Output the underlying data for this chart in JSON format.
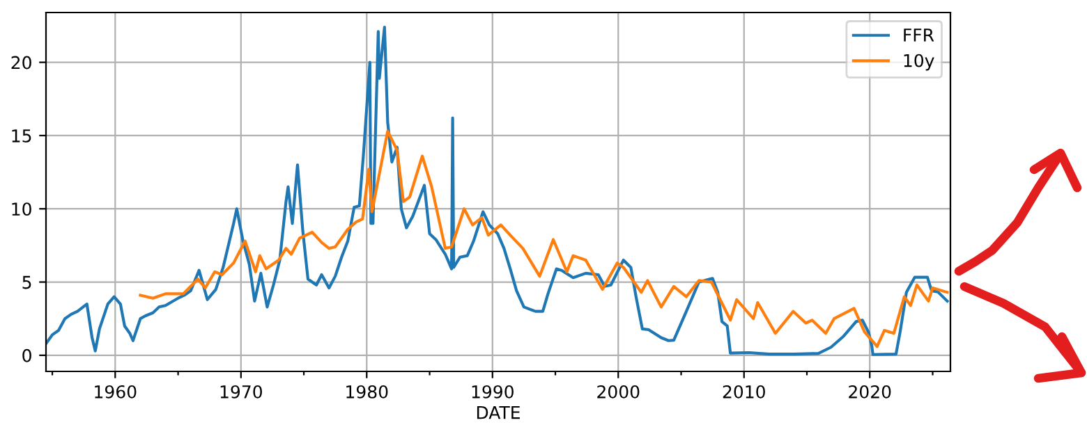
{
  "chart_data": {
    "type": "line",
    "xlabel": "DATE",
    "xlim": [
      "1954-07",
      "2026-06"
    ],
    "ylim": [
      -1.1,
      23.4
    ],
    "xticks": [
      {
        "value": "1955",
        "label": null
      },
      {
        "value": "1960",
        "label": "1960"
      },
      {
        "value": "1965",
        "label": null
      },
      {
        "value": "1970",
        "label": "1970"
      },
      {
        "value": "1975",
        "label": null
      },
      {
        "value": "1980",
        "label": "1980"
      },
      {
        "value": "1985",
        "label": null
      },
      {
        "value": "1990",
        "label": "1990"
      },
      {
        "value": "1995",
        "label": null
      },
      {
        "value": "2000",
        "label": "2000"
      },
      {
        "value": "2005",
        "label": null
      },
      {
        "value": "2010",
        "label": "2010"
      },
      {
        "value": "2015",
        "label": null
      },
      {
        "value": "2020",
        "label": "2020"
      },
      {
        "value": "2025",
        "label": null
      }
    ],
    "yticks": [
      0,
      5,
      10,
      15,
      20
    ],
    "grid": true,
    "legend": "top right",
    "series": [
      {
        "name": "FFR",
        "color": "#1f77b4",
        "x": [
          "1954-07",
          "1955-01",
          "1955-07",
          "1956-01",
          "1956-07",
          "1957-01",
          "1957-10",
          "1958-03",
          "1958-06",
          "1958-10",
          "1959-06",
          "1959-12",
          "1960-06",
          "1960-10",
          "1961-03",
          "1961-06",
          "1962-01",
          "1962-06",
          "1963-01",
          "1963-07",
          "1964-01",
          "1965-01",
          "1965-07",
          "1966-01",
          "1966-09",
          "1967-05",
          "1968-01",
          "1968-08",
          "1969-06",
          "1969-09",
          "1970-03",
          "1970-09",
          "1971-02",
          "1971-08",
          "1972-02",
          "1972-08",
          "1973-02",
          "1973-08",
          "1973-10",
          "1974-02",
          "1974-07",
          "1974-12",
          "1975-05",
          "1976-01",
          "1976-06",
          "1977-01",
          "1977-07",
          "1978-01",
          "1978-07",
          "1979-01",
          "1979-06",
          "1979-10",
          "1980-04",
          "1980-05",
          "1980-07",
          "1980-12",
          "1981-01",
          "1981-06",
          "1981-09",
          "1982-01",
          "1982-06",
          "1982-10",
          "1983-03",
          "1983-09",
          "1984-08",
          "1985-01",
          "1985-07",
          "1986-04",
          "1986-10",
          "1986-11",
          "1986-12",
          "1987-06",
          "1988-01",
          "1988-07",
          "1989-04",
          "1989-10",
          "1990-06",
          "1990-12",
          "1991-06",
          "1991-12",
          "1992-07",
          "1993-06",
          "1994-01",
          "1994-06",
          "1995-02",
          "1995-07",
          "1996-06",
          "1997-06",
          "1998-06",
          "1998-12",
          "1999-06",
          "2000-06",
          "2001-01",
          "2001-06",
          "2001-12",
          "2002-06",
          "2003-06",
          "2004-01",
          "2004-06",
          "2005-06",
          "2006-06",
          "2007-07",
          "2007-12",
          "2008-04",
          "2008-09",
          "2008-12",
          "2010-06",
          "2012-01",
          "2014-01",
          "2015-12",
          "2016-12",
          "2017-12",
          "2018-12",
          "2019-06",
          "2019-12",
          "2020-03",
          "2020-04",
          "2022-02",
          "2022-06",
          "2022-12",
          "2023-08",
          "2024-08",
          "2024-12",
          "2025-06",
          "2026-03"
        ],
        "values": [
          0.8,
          1.4,
          1.7,
          2.5,
          2.8,
          3.0,
          3.5,
          1.2,
          0.3,
          1.8,
          3.5,
          4.0,
          3.5,
          2.0,
          1.5,
          1.0,
          2.5,
          2.7,
          2.9,
          3.3,
          3.4,
          3.9,
          4.1,
          4.4,
          5.8,
          3.8,
          4.5,
          6.0,
          9.0,
          10.0,
          7.8,
          6.2,
          3.7,
          5.6,
          3.3,
          4.8,
          6.5,
          10.5,
          11.5,
          9.0,
          13.0,
          8.5,
          5.2,
          4.8,
          5.5,
          4.6,
          5.4,
          6.7,
          7.8,
          10.1,
          10.2,
          13.8,
          20.0,
          9.0,
          9.0,
          22.1,
          18.9,
          22.4,
          15.9,
          13.2,
          14.2,
          10.0,
          8.7,
          9.5,
          11.6,
          8.3,
          7.9,
          6.9,
          5.9,
          16.2,
          6.0,
          6.7,
          6.8,
          7.8,
          9.8,
          8.9,
          8.3,
          7.3,
          5.9,
          4.4,
          3.3,
          3.0,
          3.0,
          4.2,
          5.9,
          5.8,
          5.3,
          5.6,
          5.5,
          4.7,
          4.8,
          6.5,
          6.0,
          4.0,
          1.8,
          1.75,
          1.2,
          1.0,
          1.03,
          3.0,
          5.0,
          5.25,
          4.3,
          2.3,
          2.0,
          0.15,
          0.18,
          0.08,
          0.08,
          0.13,
          0.55,
          1.3,
          2.3,
          2.4,
          1.55,
          0.65,
          0.05,
          0.08,
          1.6,
          4.3,
          5.33,
          5.33,
          4.4,
          4.33,
          3.7
        ]
      },
      {
        "name": "10y",
        "color": "#ff7f0e",
        "x": [
          "1962-01",
          "1963-01",
          "1964-01",
          "1965-06",
          "1966-08",
          "1967-03",
          "1967-12",
          "1968-07",
          "1969-06",
          "1970-05",
          "1971-03",
          "1971-07",
          "1972-01",
          "1973-01",
          "1973-08",
          "1974-01",
          "1974-09",
          "1975-09",
          "1976-06",
          "1977-01",
          "1977-07",
          "1978-07",
          "1979-03",
          "1979-09",
          "1980-03",
          "1980-06",
          "1981-09",
          "1982-06",
          "1982-12",
          "1983-06",
          "1984-06",
          "1985-03",
          "1986-04",
          "1986-10",
          "1987-10",
          "1988-06",
          "1989-03",
          "1989-09",
          "1990-09",
          "1991-06",
          "1992-06",
          "1993-10",
          "1994-11",
          "1995-12",
          "1996-06",
          "1997-06",
          "1998-10",
          "1999-12",
          "2000-06",
          "2001-11",
          "2002-05",
          "2003-06",
          "2004-06",
          "2005-06",
          "2006-06",
          "2007-06",
          "2008-12",
          "2009-06",
          "2010-10",
          "2011-02",
          "2012-07",
          "2013-12",
          "2014-12",
          "2015-06",
          "2016-07",
          "2017-03",
          "2018-10",
          "2019-08",
          "2020-08",
          "2021-03",
          "2021-12",
          "2022-06",
          "2022-10",
          "2023-04",
          "2023-10",
          "2024-09",
          "2025-01",
          "2026-03"
        ],
        "values": [
          4.1,
          3.9,
          4.2,
          4.2,
          5.2,
          4.6,
          5.7,
          5.5,
          6.3,
          7.8,
          5.7,
          6.8,
          5.9,
          6.5,
          7.3,
          6.9,
          8.0,
          8.4,
          7.7,
          7.3,
          7.4,
          8.6,
          9.1,
          9.3,
          12.7,
          9.8,
          15.3,
          14.0,
          10.5,
          10.8,
          13.6,
          11.5,
          7.3,
          7.4,
          10.0,
          8.9,
          9.4,
          8.2,
          8.9,
          8.2,
          7.3,
          5.4,
          7.9,
          5.7,
          6.8,
          6.5,
          4.5,
          6.3,
          6.0,
          4.3,
          5.1,
          3.3,
          4.7,
          4.0,
          5.1,
          5.0,
          2.4,
          3.8,
          2.5,
          3.6,
          1.5,
          3.0,
          2.2,
          2.4,
          1.5,
          2.5,
          3.2,
          1.6,
          0.6,
          1.7,
          1.5,
          3.0,
          4.0,
          3.4,
          4.8,
          3.7,
          4.6,
          4.3
        ]
      }
    ]
  }
}
